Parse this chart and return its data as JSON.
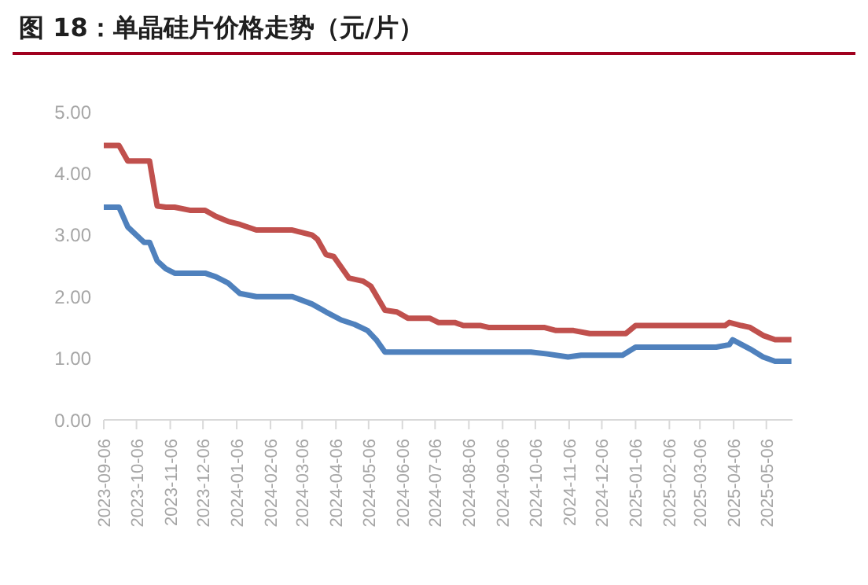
{
  "chart_data": {
    "type": "line",
    "title": "图 18：单晶硅片价格走势（元/片）",
    "series": [
      {
        "color": "#c0504d",
        "x": [
          "2023-09-06",
          "2023-09-20",
          "2023-09-28",
          "2023-10-18",
          "2023-10-25",
          "2023-11-02",
          "2023-11-10",
          "2023-11-24",
          "2023-12-08",
          "2023-12-18",
          "2023-12-29",
          "2024-01-09",
          "2024-01-24",
          "2024-02-26",
          "2024-03-15",
          "2024-03-20",
          "2024-03-28",
          "2024-04-04",
          "2024-04-18",
          "2024-05-01",
          "2024-05-08",
          "2024-05-21",
          "2024-06-01",
          "2024-06-11",
          "2024-07-01",
          "2024-07-09",
          "2024-07-24",
          "2024-08-01",
          "2024-08-17",
          "2024-08-24",
          "2024-10-14",
          "2024-10-25",
          "2024-11-10",
          "2024-11-25",
          "2024-12-28",
          "2025-01-06",
          "2025-03-29",
          "2025-04-02",
          "2025-04-13",
          "2025-04-21",
          "2025-05-03",
          "2025-05-14",
          "2025-05-29"
        ],
        "values": [
          4.45,
          4.45,
          4.2,
          4.2,
          3.47,
          3.45,
          3.45,
          3.4,
          3.4,
          3.3,
          3.22,
          3.17,
          3.08,
          3.08,
          3.0,
          2.93,
          2.68,
          2.65,
          2.3,
          2.25,
          2.17,
          1.78,
          1.75,
          1.65,
          1.65,
          1.58,
          1.58,
          1.53,
          1.53,
          1.5,
          1.5,
          1.45,
          1.45,
          1.4,
          1.4,
          1.53,
          1.53,
          1.58,
          1.53,
          1.5,
          1.37,
          1.3,
          1.3
        ]
      },
      {
        "color": "#4f81bd",
        "x": [
          "2023-09-06",
          "2023-09-20",
          "2023-09-28",
          "2023-10-13",
          "2023-10-18",
          "2023-10-25",
          "2023-11-02",
          "2023-11-10",
          "2023-12-08",
          "2023-12-18",
          "2023-12-29",
          "2024-01-09",
          "2024-01-24",
          "2024-02-26",
          "2024-03-15",
          "2024-03-28",
          "2024-04-11",
          "2024-04-23",
          "2024-05-05",
          "2024-05-13",
          "2024-05-21",
          "2024-10-02",
          "2024-10-17",
          "2024-11-05",
          "2024-11-17",
          "2024-12-25",
          "2025-01-06",
          "2025-03-21",
          "2025-04-02",
          "2025-04-05",
          "2025-04-21",
          "2025-05-03",
          "2025-05-14",
          "2025-05-29"
        ],
        "values": [
          3.45,
          3.45,
          3.13,
          2.88,
          2.88,
          2.58,
          2.45,
          2.38,
          2.38,
          2.32,
          2.22,
          2.05,
          2.0,
          2.0,
          1.88,
          1.75,
          1.62,
          1.55,
          1.45,
          1.3,
          1.1,
          1.1,
          1.07,
          1.02,
          1.05,
          1.05,
          1.18,
          1.18,
          1.22,
          1.3,
          1.15,
          1.02,
          0.95,
          0.95
        ]
      }
    ],
    "xlim": [
      "2023-09-06",
      "2025-05-30"
    ],
    "xticks": [
      "2023-09-06",
      "2023-10-06",
      "2023-11-06",
      "2023-12-06",
      "2024-01-06",
      "2024-02-06",
      "2024-03-06",
      "2024-04-06",
      "2024-05-06",
      "2024-06-06",
      "2024-07-06",
      "2024-08-06",
      "2024-09-06",
      "2024-10-06",
      "2024-11-06",
      "2024-12-06",
      "2025-01-06",
      "2025-02-06",
      "2025-03-06",
      "2025-04-06",
      "2025-05-06"
    ],
    "ylim": [
      0,
      5
    ],
    "yticks": [
      {
        "value": 0,
        "label": "0.00"
      },
      {
        "value": 1,
        "label": "1.00"
      },
      {
        "value": 2,
        "label": "2.00"
      },
      {
        "value": 3,
        "label": "3.00"
      },
      {
        "value": 4,
        "label": "4.00"
      },
      {
        "value": 5,
        "label": "5.00"
      }
    ],
    "marker": "none",
    "line_style": "solid"
  }
}
